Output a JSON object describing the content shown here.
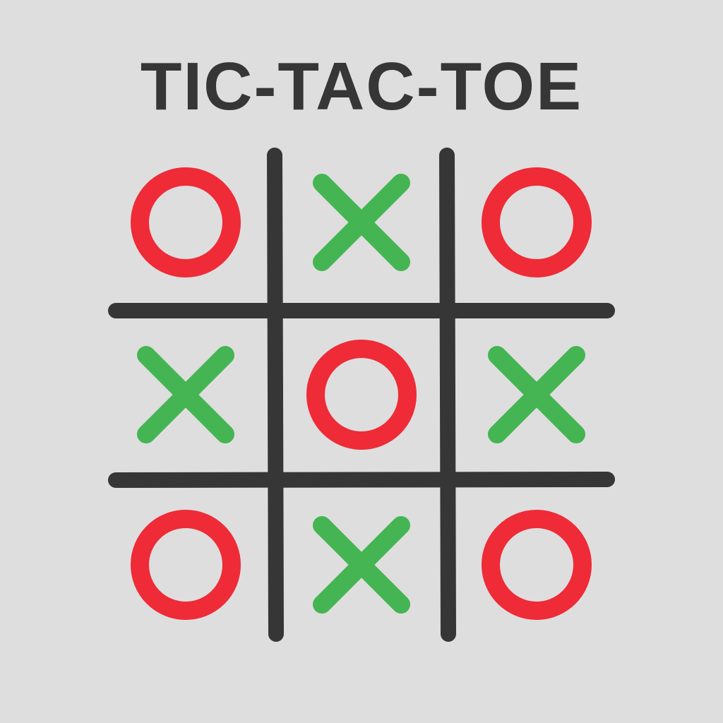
{
  "title": "TIC-TAC-TOE",
  "colors": {
    "background": "#dedede",
    "grid": "#363636",
    "x_mark": "#44b552",
    "o_mark": "#ee2b37",
    "title": "#363636"
  },
  "board": {
    "cells": [
      [
        "O",
        "X",
        "O"
      ],
      [
        "X",
        "O",
        "X"
      ],
      [
        "O",
        "X",
        "O"
      ]
    ]
  },
  "marks": {
    "x_icon": "x-mark-icon",
    "o_icon": "o-mark-icon"
  }
}
